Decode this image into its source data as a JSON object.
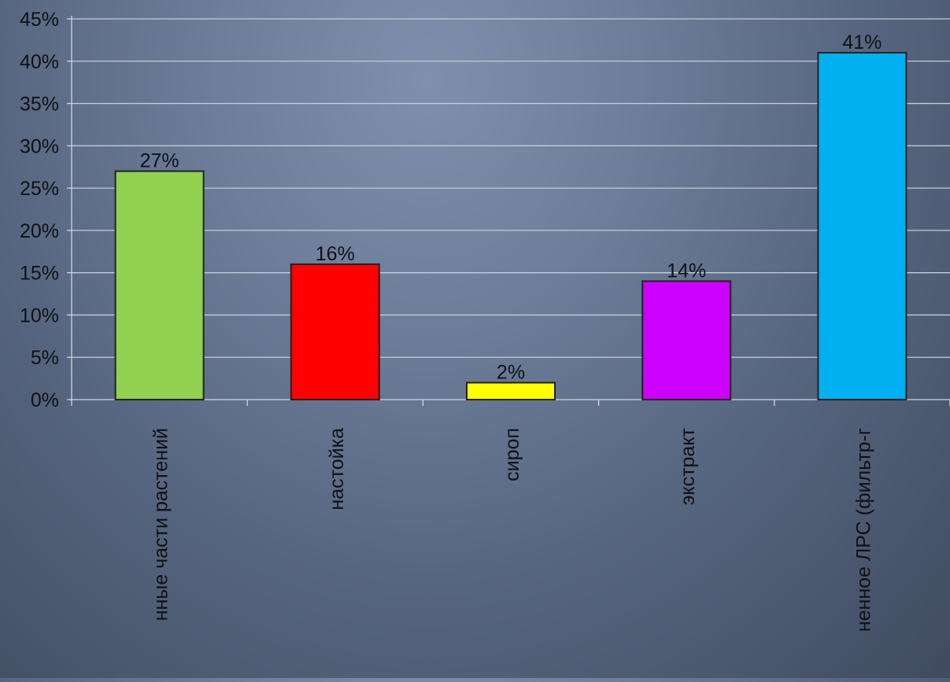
{
  "chart_data": {
    "type": "bar",
    "categories": [
      "нные части растений",
      "настойка",
      "сироп",
      "экстракт",
      "ненное ЛРС (фильтр-г"
    ],
    "values": [
      27,
      16,
      2,
      14,
      41
    ],
    "data_labels": [
      "27%",
      "16%",
      "2%",
      "14%",
      "41%"
    ],
    "colors": [
      "#92d050",
      "#ff0000",
      "#ffff00",
      "#cc00ff",
      "#00b0f0"
    ],
    "y_ticks": [
      "0%",
      "5%",
      "10%",
      "15%",
      "20%",
      "25%",
      "30%",
      "35%",
      "40%",
      "45%"
    ],
    "ylim": [
      0,
      45
    ],
    "grid": true,
    "legend": "none"
  }
}
